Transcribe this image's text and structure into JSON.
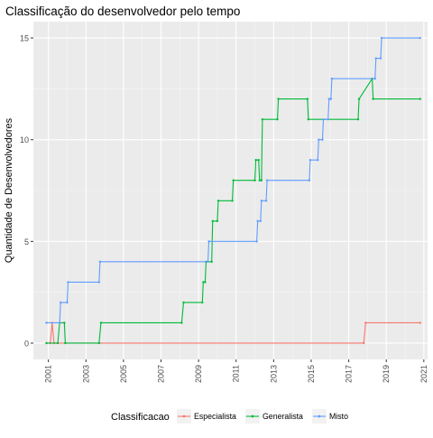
{
  "chart_data": {
    "type": "line",
    "title": "Classificação do desenvolvedor pelo tempo",
    "xlabel": "",
    "ylabel": "Quantidade de Desenvolvedores",
    "xlim": [
      2000.2,
      2021.2
    ],
    "ylim": [
      -0.8,
      15.8
    ],
    "x_ticks": [
      2001,
      2003,
      2005,
      2007,
      2009,
      2011,
      2013,
      2015,
      2017,
      2019,
      2021
    ],
    "x_tick_labels": [
      "2001",
      "2003",
      "2005",
      "2007",
      "2009",
      "2011",
      "2013",
      "2015",
      "2017",
      "2019",
      "2021"
    ],
    "y_ticks": [
      0,
      5,
      10,
      15
    ],
    "y_tick_labels": [
      "0",
      "5",
      "10",
      "15"
    ],
    "grid": true,
    "legend_title": "Classificacao",
    "legend_position": "bottom",
    "series": [
      {
        "name": "Especialista",
        "color": "#F8766D",
        "points": [
          [
            2000.9,
            0
          ],
          [
            2001.1,
            0
          ],
          [
            2001.2,
            1
          ],
          [
            2001.3,
            0
          ],
          [
            2017.8,
            0
          ],
          [
            2017.9,
            1
          ],
          [
            2020.8,
            1
          ]
        ]
      },
      {
        "name": "Generalista",
        "color": "#00BA38",
        "points": [
          [
            2000.9,
            0
          ],
          [
            2001.5,
            0
          ],
          [
            2001.6,
            1
          ],
          [
            2001.85,
            1
          ],
          [
            2001.9,
            0
          ],
          [
            2003.7,
            0
          ],
          [
            2003.8,
            1
          ],
          [
            2008.1,
            1
          ],
          [
            2008.2,
            2
          ],
          [
            2009.2,
            2
          ],
          [
            2009.25,
            3
          ],
          [
            2009.35,
            3
          ],
          [
            2009.4,
            4
          ],
          [
            2009.7,
            4
          ],
          [
            2009.75,
            6
          ],
          [
            2010.0,
            6
          ],
          [
            2010.05,
            7
          ],
          [
            2010.8,
            7
          ],
          [
            2010.85,
            8
          ],
          [
            2012.0,
            8
          ],
          [
            2012.05,
            9
          ],
          [
            2012.2,
            9
          ],
          [
            2012.25,
            8
          ],
          [
            2012.35,
            8
          ],
          [
            2012.4,
            11
          ],
          [
            2013.2,
            11
          ],
          [
            2013.25,
            12
          ],
          [
            2014.8,
            12
          ],
          [
            2014.85,
            11
          ],
          [
            2017.5,
            11
          ],
          [
            2017.55,
            12
          ],
          [
            2018.25,
            13
          ],
          [
            2018.3,
            12
          ],
          [
            2020.8,
            12
          ]
        ]
      },
      {
        "name": "Misto",
        "color": "#619CFF",
        "points": [
          [
            2000.9,
            1
          ],
          [
            2001.6,
            1
          ],
          [
            2001.65,
            2
          ],
          [
            2002.0,
            2
          ],
          [
            2002.05,
            3
          ],
          [
            2003.7,
            3
          ],
          [
            2003.75,
            4
          ],
          [
            2009.5,
            4
          ],
          [
            2009.55,
            5
          ],
          [
            2012.1,
            5
          ],
          [
            2012.15,
            6
          ],
          [
            2012.3,
            6
          ],
          [
            2012.35,
            7
          ],
          [
            2012.6,
            7
          ],
          [
            2012.65,
            8
          ],
          [
            2014.9,
            8
          ],
          [
            2014.95,
            9
          ],
          [
            2015.35,
            9
          ],
          [
            2015.4,
            10
          ],
          [
            2015.6,
            10
          ],
          [
            2015.65,
            11
          ],
          [
            2015.9,
            11
          ],
          [
            2015.95,
            12
          ],
          [
            2016.05,
            12
          ],
          [
            2016.1,
            13
          ],
          [
            2018.4,
            13
          ],
          [
            2018.45,
            14
          ],
          [
            2018.7,
            14
          ],
          [
            2018.75,
            15
          ],
          [
            2020.8,
            15
          ]
        ]
      }
    ]
  }
}
